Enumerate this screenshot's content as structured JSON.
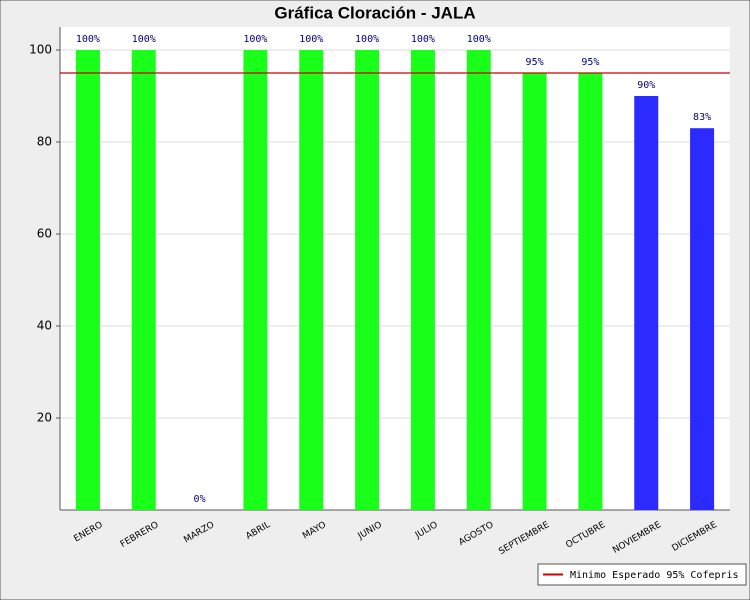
{
  "chart_data": {
    "type": "bar",
    "title": "Gráfica Cloración - JALA",
    "categories": [
      "ENERO",
      "FEBRERO",
      "MARZO",
      "ABRIL",
      "MAYO",
      "JUNIO",
      "JULIO",
      "AGOSTO",
      "SEPTIEMBRE",
      "OCTUBRE",
      "NOVIEMBRE",
      "DICIEMBRE"
    ],
    "values": [
      100,
      100,
      0,
      100,
      100,
      100,
      100,
      100,
      95,
      95,
      90,
      83
    ],
    "value_labels": [
      "100%",
      "100%",
      "0%",
      "100%",
      "100%",
      "100%",
      "100%",
      "100%",
      "95%",
      "95%",
      "90%",
      "83%"
    ],
    "colors": [
      "#1aff1a",
      "#1aff1a",
      "#1aff1a",
      "#1aff1a",
      "#1aff1a",
      "#1aff1a",
      "#1aff1a",
      "#1aff1a",
      "#1aff1a",
      "#1aff1a",
      "#2b2bff",
      "#2b2bff"
    ],
    "ylim": [
      0,
      105
    ],
    "yticks": [
      20,
      40,
      60,
      80,
      100
    ],
    "grid": true,
    "threshold": {
      "value": 95,
      "label": "Minimo Esperado 95% Cofepris",
      "color": "#cc0000"
    },
    "legend_position": "bottom-right"
  }
}
